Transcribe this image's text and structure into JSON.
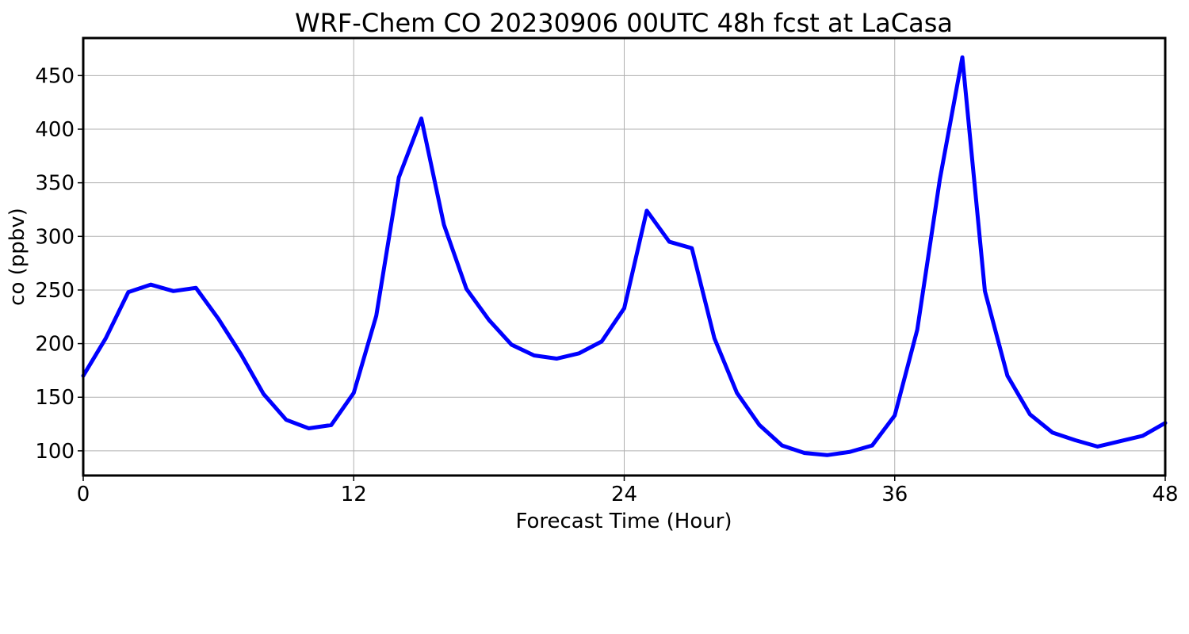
{
  "chart_data": {
    "type": "line",
    "title": "WRF-Chem CO  20230906 00UTC 48h fcst at LaCasa",
    "xlabel": "Forecast Time (Hour)",
    "ylabel": "co  (ppbv)",
    "xlim": [
      0,
      48
    ],
    "ylim": [
      77,
      485
    ],
    "xticks": [
      0,
      12,
      24,
      36,
      48
    ],
    "yticks": [
      100,
      150,
      200,
      250,
      300,
      350,
      400,
      450
    ],
    "grid": true,
    "series": [
      {
        "color": "#0000ff",
        "x": [
          0,
          1,
          2,
          3,
          4,
          5,
          6,
          7,
          8,
          9,
          10,
          11,
          12,
          13,
          14,
          15,
          16,
          17,
          18,
          19,
          20,
          21,
          22,
          23,
          24,
          25,
          26,
          27,
          28,
          29,
          30,
          31,
          32,
          33,
          34,
          35,
          36,
          37,
          38,
          39,
          40,
          41,
          42,
          43,
          44,
          45,
          46,
          47,
          48
        ],
        "y": [
          170,
          205,
          248,
          255,
          249,
          252,
          223,
          190,
          153,
          129,
          121,
          124,
          154,
          226,
          355,
          410,
          311,
          251,
          222,
          199,
          189,
          186,
          191,
          202,
          233,
          324,
          295,
          289,
          205,
          154,
          124,
          105,
          98,
          96,
          99,
          105,
          133,
          213,
          353,
          467,
          249,
          170,
          134,
          117,
          110,
          104,
          109,
          114,
          126
        ]
      }
    ]
  }
}
